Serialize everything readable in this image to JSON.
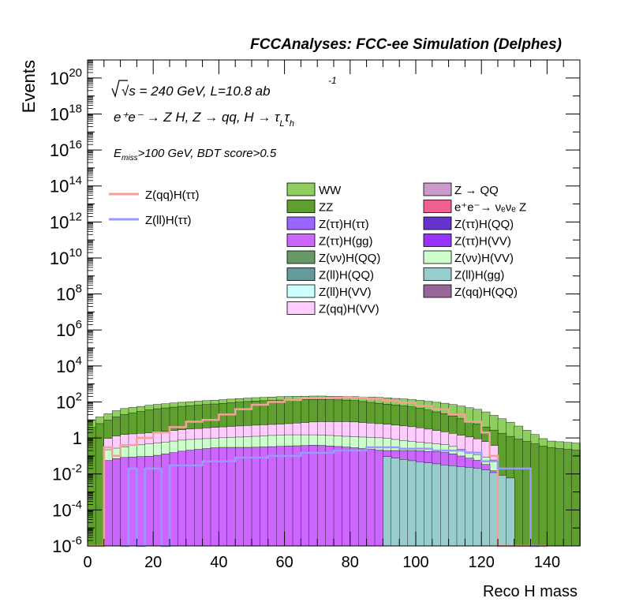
{
  "header": {
    "title": "FCCAnalyses: FCC-ee Simulation (Delphes)"
  },
  "annotations": {
    "energy": "√s = 240 GeV, L=10.8 ab",
    "energy_exp": "-1",
    "process": "e⁺e⁻ → Z H, Z → qq, H → τ",
    "process_sub1": "L",
    "process_mid": "τ",
    "process_sub2": "h",
    "cut_e": "E",
    "cut_sub": "miss",
    "cut_rest": ">100 GeV, BDT score>0.5"
  },
  "colors": {
    "WW": "#8fcf5f",
    "ZZ": "#5f9f2f",
    "Z_QQ": "#cc99cc",
    "nunuZ": "#f06090",
    "tautau_tautau": "#9966ff",
    "tautau_QQ": "#6633cc",
    "tautau_gg": "#cc66ff",
    "tautau_VV": "#9933ff",
    "nunu_QQ": "#669966",
    "nunu_VV": "#ccffcc",
    "ll_QQ": "#669999",
    "ll_gg": "#99cccc",
    "ll_VV": "#ccffff",
    "qq_QQ": "#996699",
    "qq_VV": "#ffccff",
    "sig_qq": "#f4a09a",
    "sig_ll": "#9999ff"
  },
  "chart_data": {
    "type": "histogram",
    "xlabel": "Reco H mass",
    "ylabel": "Events",
    "log_y": true,
    "xlim": [
      0,
      150
    ],
    "ylim": [
      1e-06,
      1e+21
    ],
    "x_ticks": [
      "0",
      "20",
      "40",
      "60",
      "80",
      "100",
      "120",
      "140"
    ],
    "y_ticks": [
      {
        "base": "10",
        "exp": "-6"
      },
      {
        "base": "10",
        "exp": "-4"
      },
      {
        "base": "10",
        "exp": "-2"
      },
      {
        "base": "1",
        "exp": ""
      },
      {
        "base": "10",
        "exp": "2"
      },
      {
        "base": "10",
        "exp": "4"
      },
      {
        "base": "10",
        "exp": "6"
      },
      {
        "base": "10",
        "exp": "8"
      },
      {
        "base": "10",
        "exp": "10"
      },
      {
        "base": "10",
        "exp": "12"
      },
      {
        "base": "10",
        "exp": "14"
      },
      {
        "base": "10",
        "exp": "16"
      },
      {
        "base": "10",
        "exp": "18"
      },
      {
        "base": "10",
        "exp": "20"
      }
    ],
    "bin_width": 2.5,
    "stack_tops": {
      "WW": [
        [
          0,
          8
        ],
        [
          5,
          18
        ],
        [
          10,
          40
        ],
        [
          20,
          70
        ],
        [
          30,
          100
        ],
        [
          40,
          130
        ],
        [
          50,
          170
        ],
        [
          60,
          200
        ],
        [
          70,
          215
        ],
        [
          80,
          200
        ],
        [
          90,
          175
        ],
        [
          100,
          130
        ],
        [
          110,
          80
        ],
        [
          120,
          35
        ],
        [
          130,
          6
        ],
        [
          140,
          0.7
        ],
        [
          150,
          0.5
        ]
      ],
      "ZZ": [
        [
          0,
          3
        ],
        [
          5,
          8
        ],
        [
          10,
          18
        ],
        [
          20,
          40
        ],
        [
          30,
          60
        ],
        [
          40,
          80
        ],
        [
          50,
          110
        ],
        [
          60,
          130
        ],
        [
          70,
          140
        ],
        [
          80,
          125
        ],
        [
          85,
          100
        ],
        [
          90,
          80
        ],
        [
          100,
          50
        ],
        [
          110,
          20
        ],
        [
          120,
          5
        ],
        [
          130,
          1
        ],
        [
          140,
          0.3
        ],
        [
          150,
          0.2
        ]
      ],
      "qq_VV": [
        [
          5,
          0.8
        ],
        [
          10,
          1.5
        ],
        [
          20,
          2
        ],
        [
          30,
          3
        ],
        [
          40,
          4
        ],
        [
          50,
          5
        ],
        [
          60,
          6
        ],
        [
          70,
          8
        ],
        [
          80,
          8
        ],
        [
          90,
          6
        ],
        [
          100,
          4
        ],
        [
          110,
          2
        ],
        [
          120,
          0.8
        ],
        [
          125,
          0.3
        ]
      ],
      "nunu_VV": [
        [
          5,
          0.2
        ],
        [
          10,
          0.3
        ],
        [
          20,
          0.5
        ],
        [
          30,
          0.8
        ],
        [
          40,
          1
        ],
        [
          50,
          1.2
        ],
        [
          60,
          1.5
        ],
        [
          70,
          1.5
        ],
        [
          80,
          1.2
        ],
        [
          90,
          1
        ],
        [
          100,
          0.6
        ],
        [
          110,
          0.4
        ],
        [
          120,
          0.1
        ],
        [
          125,
          0.05
        ]
      ],
      "tautau_gg": [
        [
          5,
          0.05
        ],
        [
          10,
          0.08
        ],
        [
          20,
          0.1
        ],
        [
          30,
          0.2
        ],
        [
          40,
          0.3
        ],
        [
          50,
          0.3
        ],
        [
          60,
          0.35
        ],
        [
          70,
          0.4
        ],
        [
          80,
          0.3
        ],
        [
          90,
          0.2
        ],
        [
          100,
          0.2
        ],
        [
          110,
          0.15
        ],
        [
          120,
          0.05
        ],
        [
          125,
          0.01
        ]
      ],
      "ll_gg": [
        [
          90,
          0.1
        ],
        [
          100,
          0.05
        ],
        [
          110,
          0.03
        ],
        [
          120,
          0.02
        ],
        [
          130,
          0.005
        ]
      ]
    },
    "series": [
      {
        "name": "Z(qq)H(ττ)",
        "points": [
          [
            0,
            1e-06
          ],
          [
            5,
            1e-06
          ],
          [
            5,
            0.3
          ],
          [
            7.5,
            0.3
          ],
          [
            7.5,
            0.1
          ],
          [
            10,
            0.1
          ],
          [
            10,
            0.4
          ],
          [
            15,
            0.4
          ],
          [
            15,
            1
          ],
          [
            20,
            1
          ],
          [
            20,
            2
          ],
          [
            25,
            2
          ],
          [
            25,
            4
          ],
          [
            30,
            4
          ],
          [
            30,
            8
          ],
          [
            35,
            8
          ],
          [
            35,
            10
          ],
          [
            40,
            10
          ],
          [
            40,
            20
          ],
          [
            45,
            20
          ],
          [
            45,
            40
          ],
          [
            50,
            40
          ],
          [
            50,
            70
          ],
          [
            55,
            70
          ],
          [
            55,
            100
          ],
          [
            60,
            100
          ],
          [
            60,
            130
          ],
          [
            65,
            130
          ],
          [
            65,
            160
          ],
          [
            70,
            160
          ],
          [
            70,
            170
          ],
          [
            75,
            170
          ],
          [
            75,
            180
          ],
          [
            80,
            180
          ],
          [
            80,
            170
          ],
          [
            85,
            170
          ],
          [
            85,
            150
          ],
          [
            90,
            150
          ],
          [
            90,
            120
          ],
          [
            95,
            120
          ],
          [
            95,
            90
          ],
          [
            100,
            90
          ],
          [
            100,
            60
          ],
          [
            105,
            60
          ],
          [
            105,
            40
          ],
          [
            110,
            40
          ],
          [
            110,
            20
          ],
          [
            115,
            20
          ],
          [
            115,
            8
          ],
          [
            120,
            8
          ],
          [
            120,
            2
          ],
          [
            122.5,
            2
          ],
          [
            122.5,
            0.1
          ],
          [
            125,
            0.1
          ],
          [
            125,
            1e-06
          ],
          [
            140,
            1e-06
          ]
        ]
      },
      {
        "name": "Z(ll)H(ττ)",
        "points": [
          [
            10,
            1e-06
          ],
          [
            12.5,
            1e-06
          ],
          [
            12.5,
            0.02
          ],
          [
            15,
            0.02
          ],
          [
            15,
            1e-06
          ],
          [
            17.5,
            1e-06
          ],
          [
            17.5,
            0.02
          ],
          [
            22.5,
            0.02
          ],
          [
            22.5,
            1e-06
          ],
          [
            25,
            1e-06
          ],
          [
            25,
            0.03
          ],
          [
            35,
            0.03
          ],
          [
            35,
            0.05
          ],
          [
            45,
            0.05
          ],
          [
            45,
            0.08
          ],
          [
            55,
            0.08
          ],
          [
            55,
            0.1
          ],
          [
            65,
            0.1
          ],
          [
            65,
            0.15
          ],
          [
            75,
            0.15
          ],
          [
            75,
            0.2
          ],
          [
            85,
            0.2
          ],
          [
            85,
            0.3
          ],
          [
            95,
            0.3
          ],
          [
            95,
            0.25
          ],
          [
            105,
            0.25
          ],
          [
            105,
            0.2
          ],
          [
            115,
            0.2
          ],
          [
            115,
            0.15
          ],
          [
            120,
            0.15
          ],
          [
            120,
            0.05
          ],
          [
            125,
            0.05
          ],
          [
            125,
            0.02
          ],
          [
            135,
            0.02
          ],
          [
            135,
            1e-06
          ],
          [
            137.5,
            1e-06
          ]
        ]
      }
    ],
    "legend_lines": [
      {
        "label": "Z(qq)H(ττ)",
        "color_key": "sig_qq"
      },
      {
        "label": "Z(ll)H(ττ)",
        "color_key": "sig_ll"
      }
    ],
    "legend_col1": [
      {
        "label": "WW",
        "color_key": "WW"
      },
      {
        "label": "ZZ",
        "color_key": "ZZ"
      },
      {
        "label": "Z(ττ)H(ττ)",
        "color_key": "tautau_tautau"
      },
      {
        "label": "Z(ττ)H(gg)",
        "color_key": "tautau_gg"
      },
      {
        "label": "Z(νν)H(QQ)",
        "color_key": "nunu_QQ"
      },
      {
        "label": "Z(ll)H(QQ)",
        "color_key": "ll_QQ"
      },
      {
        "label": "Z(ll)H(VV)",
        "color_key": "ll_VV"
      },
      {
        "label": "Z(qq)H(VV)",
        "color_key": "qq_VV"
      }
    ],
    "legend_col2": [
      {
        "label": "Z → QQ",
        "color_key": "Z_QQ"
      },
      {
        "label": "e⁺e⁻→ νₑνₑ Z",
        "color_key": "nunuZ"
      },
      {
        "label": "Z(ττ)H(QQ)",
        "color_key": "tautau_QQ"
      },
      {
        "label": "Z(ττ)H(VV)",
        "color_key": "tautau_VV"
      },
      {
        "label": "Z(νν)H(VV)",
        "color_key": "nunu_VV"
      },
      {
        "label": "Z(ll)H(gg)",
        "color_key": "ll_gg"
      },
      {
        "label": "Z(qq)H(QQ)",
        "color_key": "qq_QQ"
      }
    ]
  }
}
